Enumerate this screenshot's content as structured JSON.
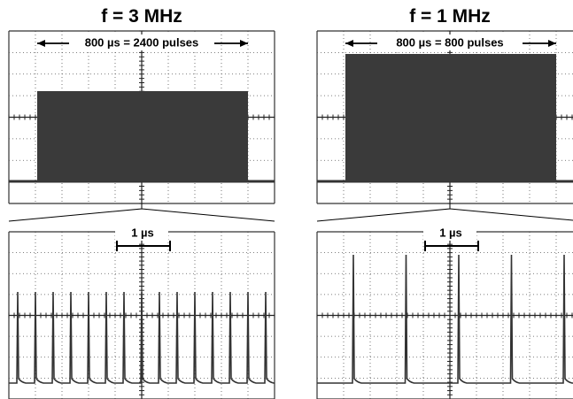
{
  "panels": [
    {
      "title": "f = 3 MHz",
      "span_label": "800 µs = 2400 pulses",
      "scale_label": "1 µs"
    },
    {
      "title": "f = 1 MHz",
      "span_label": "800 µs = 800 pulses",
      "scale_label": "1 µs"
    }
  ]
}
